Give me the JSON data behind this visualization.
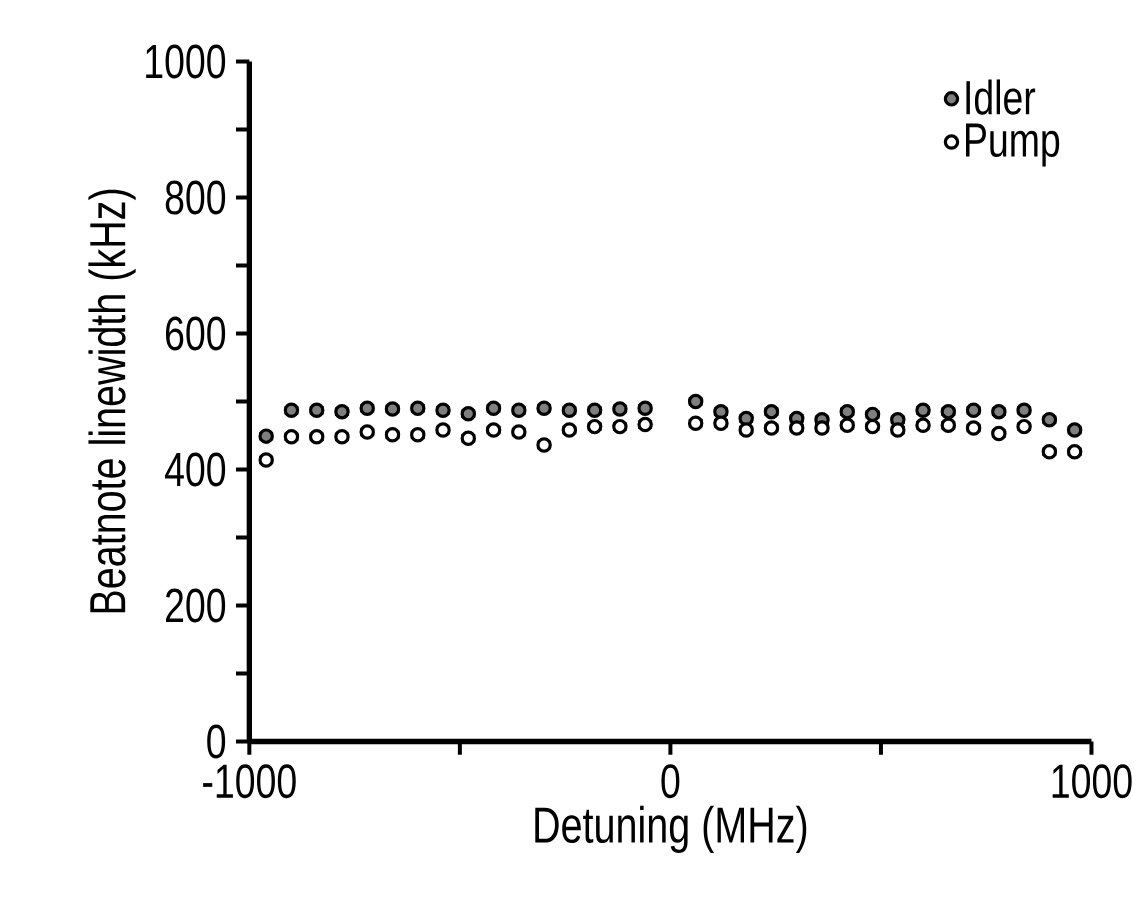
{
  "chart_data": {
    "type": "scatter",
    "xlabel": "Detuning (MHz)",
    "ylabel": "Beatnote linewidth (kHz)",
    "x": [
      -960,
      -900,
      -840,
      -780,
      -720,
      -660,
      -600,
      -540,
      -480,
      -420,
      -360,
      -300,
      -240,
      -180,
      -120,
      -60,
      60,
      120,
      180,
      240,
      300,
      360,
      420,
      480,
      540,
      600,
      660,
      720,
      780,
      840,
      900,
      960
    ],
    "series": [
      {
        "name": "Idler",
        "color": "#7f7f7f",
        "values": [
          449,
          487,
          487,
          485,
          490,
          489,
          490,
          487,
          482,
          490,
          487,
          490,
          487,
          487,
          489,
          490,
          500,
          485,
          475,
          485,
          475,
          473,
          485,
          481,
          473,
          487,
          485,
          487,
          485,
          487,
          473,
          458
        ],
        "errors": [
          4,
          4,
          4,
          4,
          4,
          4,
          4,
          4,
          4,
          4,
          4,
          4,
          4,
          4,
          4,
          4,
          4,
          4,
          4,
          4,
          4,
          4,
          4,
          4,
          4,
          4,
          4,
          4,
          4,
          4,
          4,
          4
        ]
      },
      {
        "name": "Pump",
        "color": "#ffffff",
        "values": [
          414,
          448,
          448,
          448,
          455,
          451,
          451,
          458,
          446,
          458,
          455,
          436,
          458,
          463,
          463,
          466,
          468,
          468,
          458,
          461,
          461,
          461,
          465,
          463,
          458,
          465,
          465,
          461,
          453,
          463,
          426,
          426
        ],
        "errors": [
          4,
          4,
          4,
          4,
          4,
          4,
          4,
          4,
          4,
          4,
          4,
          4,
          4,
          4,
          4,
          4,
          4,
          4,
          4,
          4,
          4,
          4,
          4,
          4,
          4,
          4,
          4,
          4,
          4,
          4,
          4,
          4
        ]
      }
    ],
    "xlim": [
      -1000,
      1000
    ],
    "xticks": [
      -1000,
      {
        "value": -500,
        "label": null
      },
      0,
      {
        "value": 500,
        "label": null
      },
      1000
    ],
    "ylim": [
      0,
      1000
    ],
    "yticks": [
      0,
      {
        "value": 100,
        "label": null
      },
      200,
      {
        "value": 300,
        "label": null
      },
      400,
      {
        "value": 500,
        "label": null
      },
      600,
      {
        "value": 700,
        "label": null
      },
      800,
      {
        "value": 900,
        "label": null
      },
      1000
    ],
    "marker": "circle",
    "legend": "top right",
    "grid": false
  }
}
